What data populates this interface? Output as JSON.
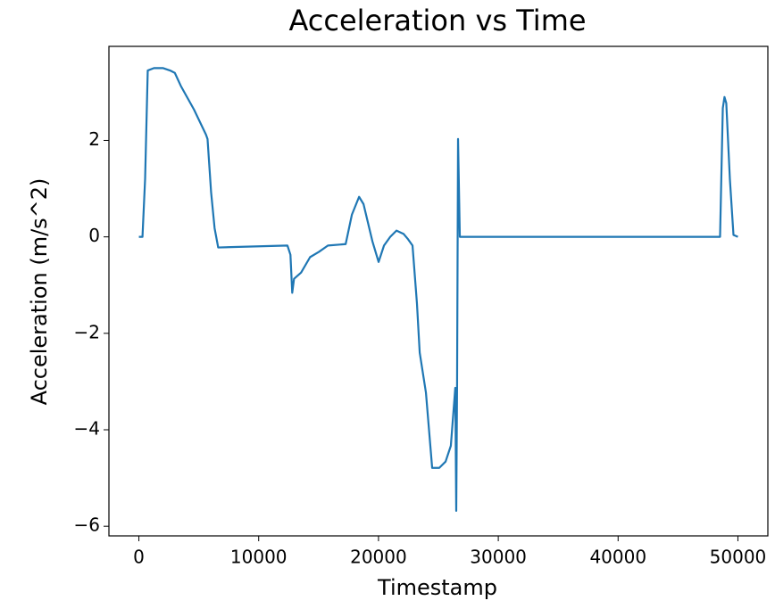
{
  "chart_data": {
    "type": "line",
    "title": "Acceleration vs Time",
    "xlabel": "Timestamp",
    "ylabel": "Acceleration (m/s^2)",
    "x": [
      0,
      300,
      520,
      740,
      1260,
      2000,
      2600,
      3000,
      3500,
      4600,
      5600,
      5730,
      6030,
      6320,
      6620,
      12400,
      12650,
      12800,
      12950,
      13540,
      14290,
      15030,
      15780,
      17260,
      17780,
      18380,
      18750,
      19490,
      20010,
      20460,
      20980,
      21500,
      22100,
      22470,
      22840,
      23210,
      23440,
      23960,
      24480,
      25070,
      25600,
      26040,
      26410,
      26490,
      26560,
      26640,
      26790,
      27310,
      48510,
      48740,
      48880,
      49030,
      49330,
      49630,
      50000
    ],
    "series": [
      {
        "name": "Acceleration",
        "color": "#1f77b4",
        "values": [
          0,
          0,
          1.2,
          3.45,
          3.5,
          3.5,
          3.45,
          3.4,
          3.13,
          2.64,
          2.12,
          2.03,
          0.92,
          0.18,
          -0.22,
          -0.18,
          -0.37,
          -1.16,
          -0.87,
          -0.74,
          -0.42,
          -0.31,
          -0.18,
          -0.15,
          0.46,
          0.83,
          0.68,
          -0.09,
          -0.52,
          -0.18,
          0,
          0.13,
          0.06,
          -0.05,
          -0.18,
          -1.38,
          -2.4,
          -3.23,
          -4.79,
          -4.79,
          -4.66,
          -4.33,
          -3.13,
          -5.68,
          -3.04,
          2.03,
          0,
          0,
          0,
          2.67,
          2.9,
          2.77,
          1.2,
          0.04,
          0
        ]
      }
    ],
    "xlim": [
      -2500,
      52500
    ],
    "ylim": [
      -6.2,
      3.95
    ],
    "xticks": [
      0,
      10000,
      20000,
      30000,
      40000,
      50000
    ],
    "yticks": [
      {
        "value": -6,
        "label": "−6"
      },
      {
        "value": -4,
        "label": "−4"
      },
      {
        "value": -2,
        "label": "−2"
      },
      0,
      2
    ],
    "grid": false
  }
}
